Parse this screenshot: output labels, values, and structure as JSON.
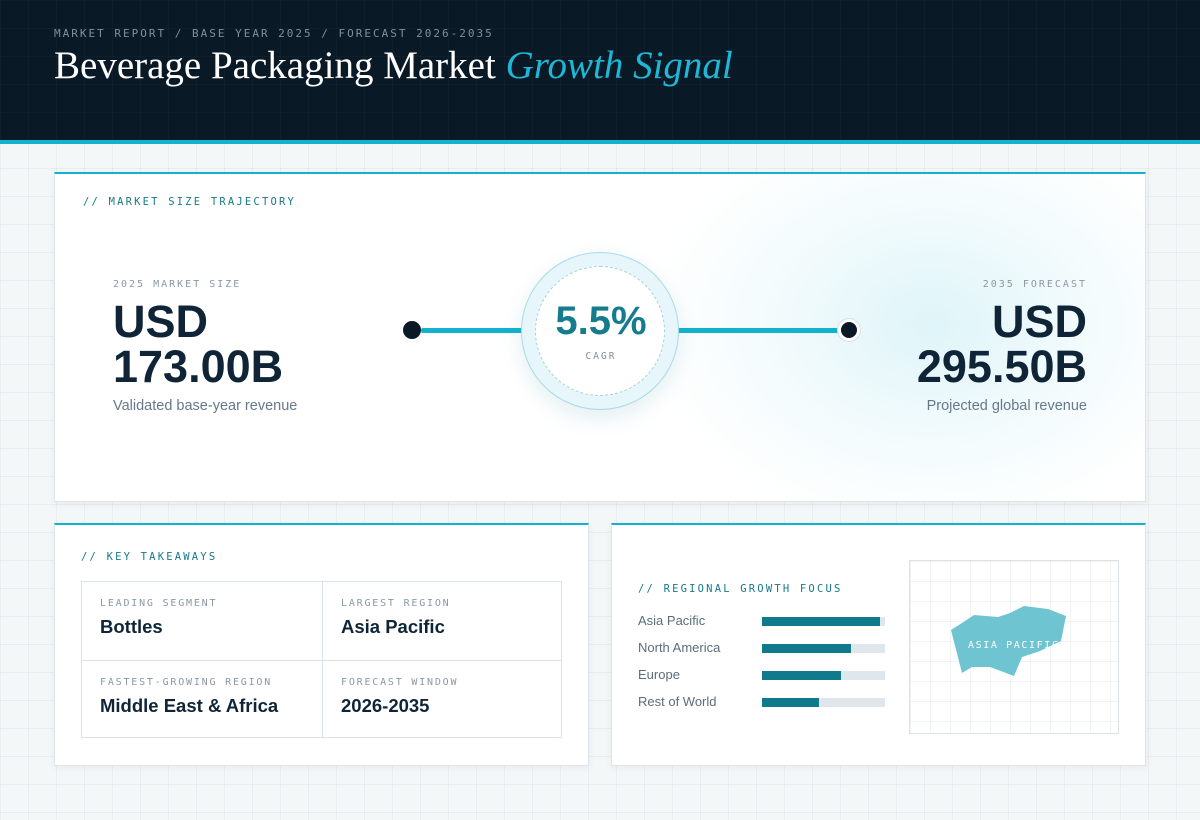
{
  "header": {
    "eyebrow": "MARKET REPORT / BASE YEAR 2025 / FORECAST 2026-2035",
    "title_main": "Beverage Packaging Market",
    "title_accent": "Growth Signal"
  },
  "trajectory": {
    "label": "// MARKET SIZE TRAJECTORY",
    "start": {
      "label": "2025 MARKET SIZE",
      "currency": "USD",
      "value": "173.00B",
      "caption": "Validated base-year revenue"
    },
    "cagr": {
      "value": "5.5%",
      "label": "CAGR"
    },
    "end": {
      "label": "2035 FORECAST",
      "currency": "USD",
      "value": "295.50B",
      "caption": "Projected global revenue"
    }
  },
  "takeaways": {
    "label": "// KEY TAKEAWAYS",
    "items": [
      {
        "label": "LEADING SEGMENT",
        "value": "Bottles"
      },
      {
        "label": "LARGEST REGION",
        "value": "Asia Pacific"
      },
      {
        "label": "FASTEST-GROWING REGION",
        "value": "Middle East & Africa"
      },
      {
        "label": "FORECAST WINDOW",
        "value": "2026-2035"
      }
    ]
  },
  "regional": {
    "label": "// REGIONAL GROWTH FOCUS",
    "regions": [
      {
        "name": "Asia Pacific",
        "share": 0.96
      },
      {
        "name": "North America",
        "share": 0.72
      },
      {
        "name": "Europe",
        "share": 0.64
      },
      {
        "name": "Rest of World",
        "share": 0.46
      }
    ],
    "map_label": "ASIA PACIFIC"
  },
  "colors": {
    "accent": "#12b2cf",
    "navy": "#0a1926",
    "bar_fill": "#0f7a8c",
    "map_shape": "#6fc4d2"
  }
}
